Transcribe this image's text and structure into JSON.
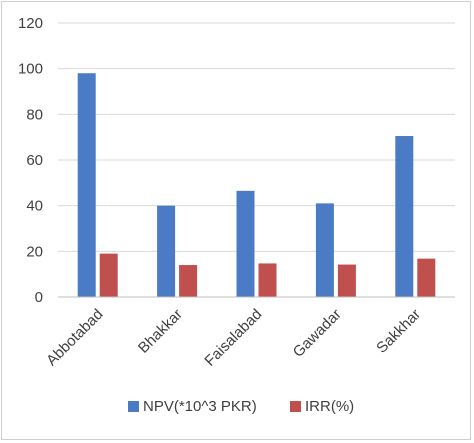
{
  "chart_data": {
    "type": "bar",
    "categories": [
      "Abbotabad",
      "Bhakkar",
      "Faisalabad",
      "Gawadar",
      "Sakkhar"
    ],
    "series": [
      {
        "name": "NPV(*10^3 PKR)",
        "values": [
          98,
          40,
          46.5,
          41,
          70.5
        ],
        "color": "#4a7bc4"
      },
      {
        "name": "IRR(%)",
        "values": [
          19,
          14,
          14.7,
          14.2,
          16.8
        ],
        "color": "#c0504d"
      }
    ],
    "y_ticks": [
      "0",
      "20",
      "40",
      "60",
      "80",
      "100",
      "120"
    ],
    "ylim": [
      0,
      120
    ],
    "grid": true,
    "legend_position": "bottom"
  }
}
